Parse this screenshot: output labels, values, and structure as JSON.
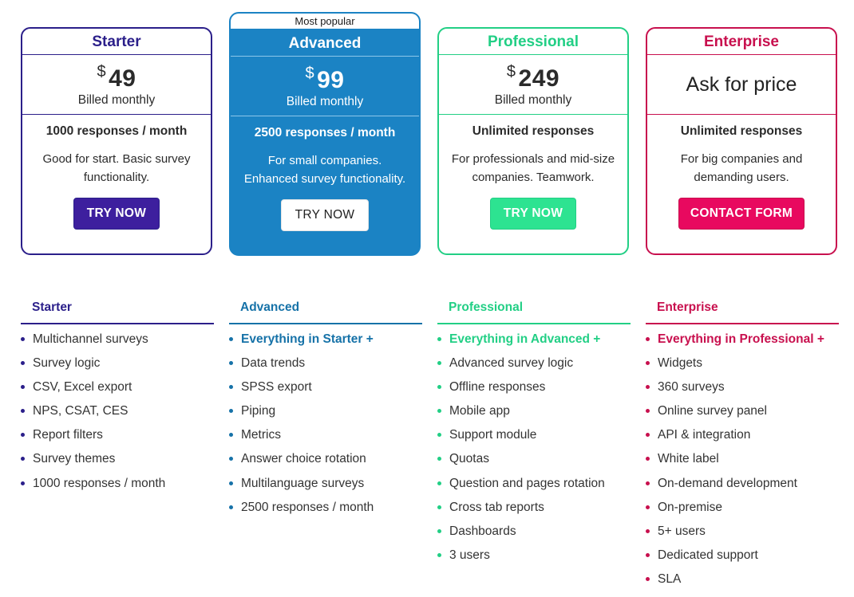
{
  "plans": {
    "starter": {
      "name": "Starter",
      "currency": "$",
      "price": "49",
      "billing": "Billed monthly",
      "responses": "1000 responses / month",
      "desc1": "Good for start. Basic survey",
      "desc2": "functionality.",
      "cta": "TRY NOW"
    },
    "advanced": {
      "badge": "Most popular",
      "name": "Advanced",
      "currency": "$",
      "price": "99",
      "billing": "Billed monthly",
      "responses": "2500 responses / month",
      "desc1": "For small companies.",
      "desc2": "Enhanced survey functionality.",
      "cta": "TRY NOW"
    },
    "professional": {
      "name": "Professional",
      "currency": "$",
      "price": "249",
      "billing": "Billed monthly",
      "responses": "Unlimited responses",
      "desc1": "For professionals and mid-size",
      "desc2": "companies. Teamwork.",
      "cta": "TRY NOW"
    },
    "enterprise": {
      "name": "Enterprise",
      "price_text": "Ask for price",
      "responses": "Unlimited responses",
      "desc1": "For big companies and",
      "desc2": "demanding users.",
      "cta": "CONTACT FORM"
    }
  },
  "features": {
    "starter": {
      "title": "Starter",
      "items": [
        "Multichannel surveys",
        "Survey logic",
        "CSV, Excel export",
        "NPS, CSAT, CES",
        "Report filters",
        "Survey themes",
        "1000 responses / month"
      ]
    },
    "advanced": {
      "title": "Advanced",
      "items": [
        "Everything in Starter +",
        "Data trends",
        "SPSS export",
        "Piping",
        "Metrics",
        "Answer choice rotation",
        "Multilanguage surveys",
        "2500 responses / month"
      ]
    },
    "professional": {
      "title": "Professional",
      "items": [
        "Everything in Advanced +",
        "Advanced survey logic",
        "Offline responses",
        "Mobile app",
        "Support module",
        "Quotas",
        "Question and pages rotation",
        "Cross tab reports",
        "Dashboards",
        "3 users"
      ]
    },
    "enterprise": {
      "title": "Enterprise",
      "items": [
        "Everything in Professional +",
        "Widgets",
        "360 surveys",
        "Online survey panel",
        "API & integration",
        "White label",
        "On-demand development",
        "On-premise",
        "5+ users",
        "Dedicated support",
        "SLA"
      ]
    }
  },
  "colors": {
    "starter": "#2b1f8a",
    "starter_button": "#3d1f9e",
    "advanced": "#1b83c4",
    "advanced_feature": "#1672a8",
    "professional": "#22cf85",
    "professional_button": "#2de391",
    "enterprise": "#c8104e",
    "enterprise_button": "#e8095f"
  }
}
